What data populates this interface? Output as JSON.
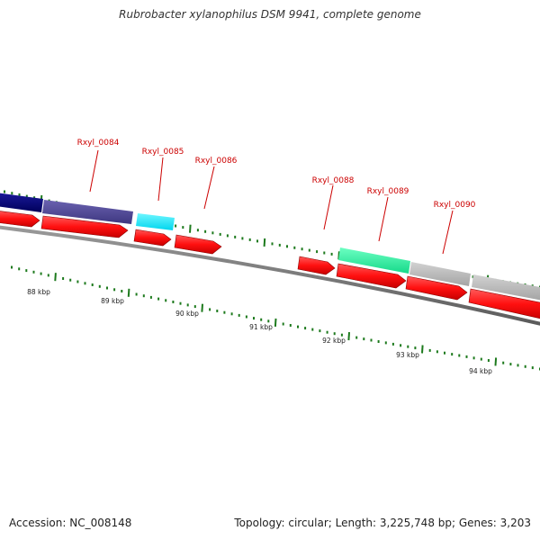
{
  "title": "Rubrobacter xylanophilus DSM 9941, complete genome",
  "footer": {
    "accession": "Accession: NC_008148",
    "summary": "Topology: circular; Length: 3,225,748 bp; Genes: 3,203"
  },
  "colors": {
    "cds": "#ff1a1a",
    "label": "#cc0000",
    "tick": "#1d7a1d",
    "backbone": "#888888"
  },
  "gene_labels": [
    "Rxyl_0084",
    "Rxyl_0085",
    "Rxyl_0086",
    "Rxyl_0088",
    "Rxyl_0089",
    "Rxyl_0090"
  ],
  "kbp_labels": [
    "88 kbp",
    "89 kbp",
    "90 kbp",
    "91 kbp",
    "92 kbp",
    "93 kbp",
    "94 kbp"
  ]
}
